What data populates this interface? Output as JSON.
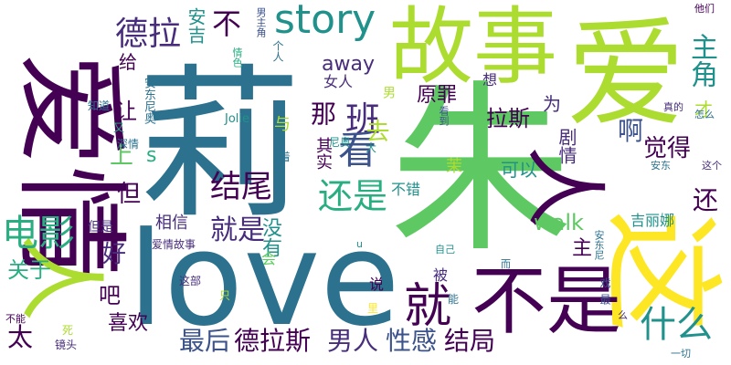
{
  "word_cloud": {
    "palette": {
      "dark_purple": "#440154",
      "purple": "#472d7b",
      "indigo": "#3b528b",
      "blue": "#2c728e",
      "teal": "#21918c",
      "green_teal": "#28ae80",
      "green": "#5ec962",
      "lime": "#addc30",
      "yellow": "#fde725"
    },
    "words": {
      "ai_qing_big": "爱情",
      "li": "莉",
      "zhu": "朱",
      "love": "love",
      "gu_shi": "故事",
      "ai": "爱",
      "zhe": "这",
      "bu_shi": "不是",
      "ren_big": "人",
      "ren_right": "人",
      "story": "story",
      "dian_ying": "电影",
      "de_la": "德拉",
      "ban": "班",
      "kan": "看",
      "jiu": "就",
      "hai_shi": "还是",
      "shen_me": "什么",
      "jie_wei": "结尾",
      "jiu_shi": "就是",
      "de_la_si": "德拉斯",
      "nan_ren": "男人",
      "xing_gan": "性感",
      "jie_ju": "结局",
      "an_ji_li_na": "安吉丽娜",
      "zui_hou": "最后",
      "xi_huan": "喜欢",
      "tai": "太",
      "guan_yu": "关于",
      "ba": "吧",
      "hao": "好",
      "dan": "但",
      "shang": "上",
      "rang": "让",
      "gei": "给",
      "bu": "不",
      "an_ji": "安吉",
      "zhu_jiao": "主角",
      "away": "away",
      "walk": "walk",
      "yuan_zui": "原罪",
      "la_si": "拉斯",
      "na": "那",
      "qu": "去",
      "a": "啊",
      "jue_de": "觉得",
      "hai": "还",
      "ju_qing": "剧情",
      "ke_yi": "可以",
      "wei": "为",
      "cai": "才",
      "zhu_small": "主",
      "mei_you": "没有",
      "xiang_xin": "相信",
      "bu_cuo": "不错",
      "ji_li_na": "吉丽娜",
      "qi_shi": "其实",
      "s": "s",
      "nv_ren": "女人",
      "xiang": "想",
      "nan": "男",
      "an_dong_ni_ao_top": "安东尼奥",
      "jolie": "Jolie",
      "zhi_dao": "知道",
      "shen_qing": "深情",
      "you": "又",
      "yu": "与",
      "kan_dao": "看到",
      "ni_ao": "尼奥",
      "da": "大",
      "zhe_small": "着",
      "mo": "茉",
      "dan_shi": "但是",
      "ai_qing_gu_shi": "爱情故事",
      "zhe_bu": "这部",
      "zhi": "只",
      "hui": "会",
      "shuo": "说",
      "bei": "被",
      "neng": "能",
      "zi_ji": "自己",
      "er": "而",
      "xi": "戏",
      "zui": "最",
      "an_dong_ni": "安东尼",
      "bu_neng": "不能",
      "si": "死",
      "jing_tou": "镜头",
      "li_small": "里",
      "yi_qie": "一切",
      "ta_men": "他们",
      "nan_zhu_jiao": "男主角",
      "ge_ren": "个人",
      "qing_se": "情色",
      "zhen_de": "真的",
      "zen_me": "怎么",
      "an_dong": "安东",
      "zhe_ge": "这个",
      "me": "么",
      "u": "u"
    }
  }
}
